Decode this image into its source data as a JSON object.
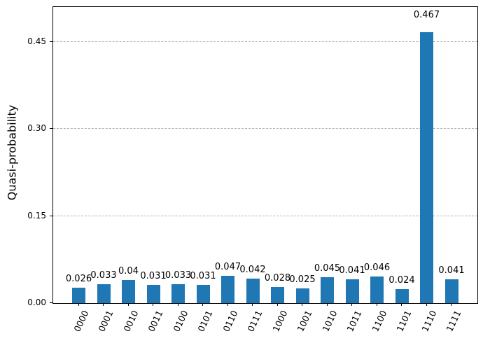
{
  "chart_data": {
    "type": "bar",
    "title": "",
    "xlabel": "",
    "ylabel": "Quasi-probability",
    "categories": [
      "0000",
      "0001",
      "0010",
      "0011",
      "0100",
      "0101",
      "0110",
      "0111",
      "1000",
      "1001",
      "1010",
      "1011",
      "1100",
      "1101",
      "1110",
      "1111"
    ],
    "values": [
      0.026,
      0.033,
      0.04,
      0.031,
      0.033,
      0.031,
      0.047,
      0.042,
      0.028,
      0.025,
      0.045,
      0.041,
      0.046,
      0.024,
      0.467,
      0.041
    ],
    "bar_labels": [
      "0.026",
      "0.033",
      "0.04",
      "0.031",
      "0.033",
      "0.031",
      "0.047",
      "0.042",
      "0.028",
      "0.025",
      "0.045",
      "0.041",
      "0.046",
      "0.024",
      "0.467",
      "0.041"
    ],
    "y_ticks": [
      0.0,
      0.15,
      0.3,
      0.45
    ],
    "y_tick_labels": [
      "0.00",
      "0.15",
      "0.30",
      "0.45"
    ],
    "ylim": [
      0,
      0.51
    ],
    "bar_color": "#1f77b4",
    "grid": "horizontal-dashed",
    "gridline_color": "#b0b0b0",
    "legend": null,
    "x_tick_rotation_deg": 65
  }
}
